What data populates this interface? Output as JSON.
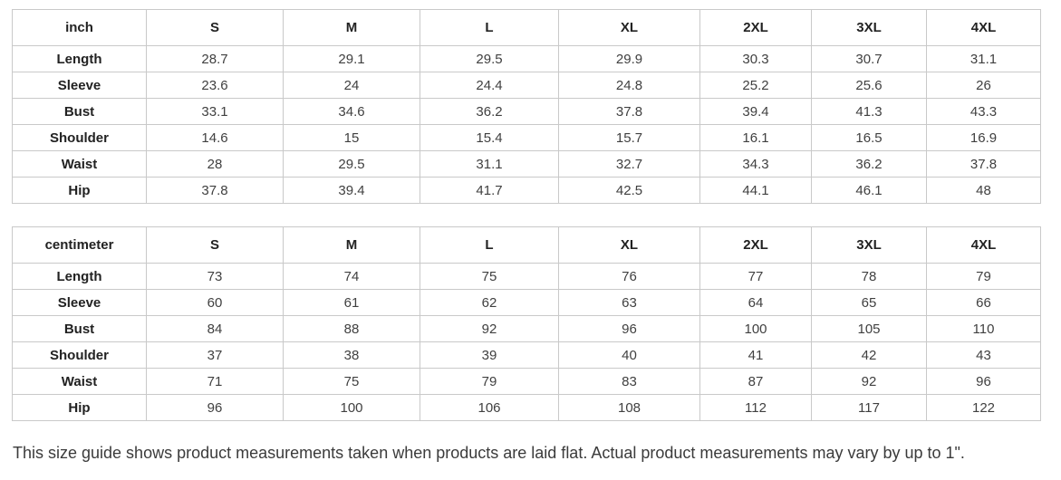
{
  "colors": {
    "background": "#ffffff",
    "table_border": "#c9c9c9",
    "header_text": "#222222",
    "value_text": "#404040",
    "note_text": "#3b3b3b"
  },
  "size_chart": {
    "sizes": [
      "S",
      "M",
      "L",
      "XL",
      "2XL",
      "3XL",
      "4XL"
    ],
    "measurements": [
      "Length",
      "Sleeve",
      "Bust",
      "Shoulder",
      "Waist",
      "Hip"
    ],
    "tables": [
      {
        "unit_label": "inch",
        "rows": [
          {
            "label": "Length",
            "values": [
              "28.7",
              "29.1",
              "29.5",
              "29.9",
              "30.3",
              "30.7",
              "31.1"
            ]
          },
          {
            "label": "Sleeve",
            "values": [
              "23.6",
              "24",
              "24.4",
              "24.8",
              "25.2",
              "25.6",
              "26"
            ]
          },
          {
            "label": "Bust",
            "values": [
              "33.1",
              "34.6",
              "36.2",
              "37.8",
              "39.4",
              "41.3",
              "43.3"
            ]
          },
          {
            "label": "Shoulder",
            "values": [
              "14.6",
              "15",
              "15.4",
              "15.7",
              "16.1",
              "16.5",
              "16.9"
            ]
          },
          {
            "label": "Waist",
            "values": [
              "28",
              "29.5",
              "31.1",
              "32.7",
              "34.3",
              "36.2",
              "37.8"
            ]
          },
          {
            "label": "Hip",
            "values": [
              "37.8",
              "39.4",
              "41.7",
              "42.5",
              "44.1",
              "46.1",
              "48"
            ]
          }
        ]
      },
      {
        "unit_label": "centimeter",
        "rows": [
          {
            "label": "Length",
            "values": [
              "73",
              "74",
              "75",
              "76",
              "77",
              "78",
              "79"
            ]
          },
          {
            "label": "Sleeve",
            "values": [
              "60",
              "61",
              "62",
              "63",
              "64",
              "65",
              "66"
            ]
          },
          {
            "label": "Bust",
            "values": [
              "84",
              "88",
              "92",
              "96",
              "100",
              "105",
              "110"
            ]
          },
          {
            "label": "Shoulder",
            "values": [
              "37",
              "38",
              "39",
              "40",
              "41",
              "42",
              "43"
            ]
          },
          {
            "label": "Waist",
            "values": [
              "71",
              "75",
              "79",
              "83",
              "87",
              "92",
              "96"
            ]
          },
          {
            "label": "Hip",
            "values": [
              "96",
              "100",
              "106",
              "108",
              "112",
              "117",
              "122"
            ]
          }
        ]
      }
    ]
  },
  "footer": {
    "note": "This size guide shows product measurements taken when products are laid flat. Actual product measurements may vary by up to 1\"."
  }
}
